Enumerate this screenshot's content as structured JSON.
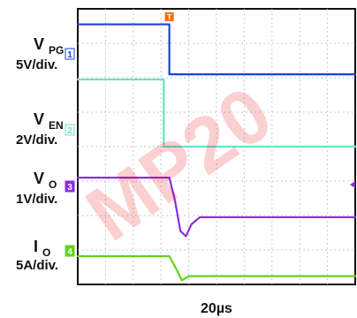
{
  "watermark": {
    "text": "MP20",
    "color": "#e60000"
  },
  "chart_data": {
    "type": "line",
    "subtype": "oscilloscope-capture",
    "title": "",
    "xlabel": "20µs",
    "ylabel": "",
    "grid": true,
    "x_divisions": 10,
    "y_divisions": 8,
    "x_units": "div",
    "y_units": "div",
    "time_per_div_label": "20µs",
    "trigger_marker": {
      "label": "T",
      "x_div": 3.3,
      "color": "#ff6a00"
    },
    "channels": [
      {
        "id": 1,
        "name": "V",
        "subscript": "PG",
        "scale": "5V/div.",
        "color": "#1f3fe6",
        "ch_badge": "1",
        "x": [
          0,
          3.3,
          3.3,
          10
        ],
        "y": [
          7.55,
          7.55,
          6.1,
          6.1
        ]
      },
      {
        "id": 2,
        "name": "V",
        "subscript": "EN",
        "scale": "2V/div.",
        "color": "#63e6c9",
        "ch_badge": "2",
        "x": [
          0,
          3.1,
          3.1,
          10
        ],
        "y": [
          5.95,
          5.95,
          4.0,
          4.0
        ]
      },
      {
        "id": 3,
        "name": "V",
        "subscript": "O",
        "scale": "1V/div.",
        "color": "#8a2ee0",
        "ch_badge": "3",
        "x": [
          0,
          3.3,
          3.5,
          3.7,
          3.9,
          4.1,
          4.4,
          10
        ],
        "y": [
          3.1,
          3.1,
          2.45,
          1.55,
          1.4,
          1.75,
          1.95,
          1.95
        ]
      },
      {
        "id": 4,
        "name": "I",
        "subscript": "O",
        "scale": "5A/div.",
        "color": "#64d21e",
        "ch_badge": "4",
        "x": [
          0,
          3.3,
          3.55,
          3.75,
          4.0,
          10
        ],
        "y": [
          0.82,
          0.82,
          0.45,
          0.12,
          0.24,
          0.24
        ]
      }
    ]
  }
}
